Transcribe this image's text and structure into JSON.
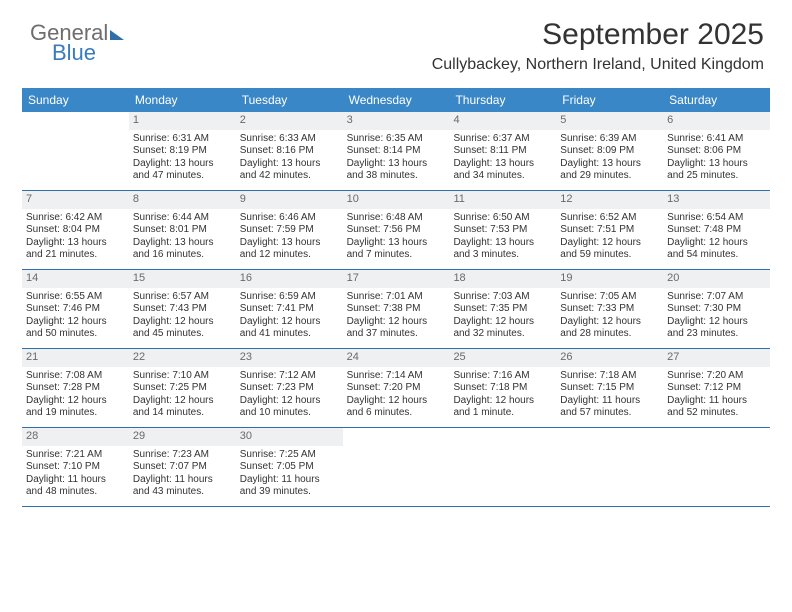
{
  "logo": {
    "part1": "General",
    "part2": "Blue"
  },
  "header": {
    "title": "September 2025",
    "subtitle": "Cullybackey, Northern Ireland, United Kingdom"
  },
  "colors": {
    "header_bg": "#3a87c7",
    "header_text": "#ffffff",
    "rule": "#2f6fa7",
    "daynum_bg": "#eef0f1",
    "text": "#333333",
    "logo_gray": "#6e6e6e",
    "logo_blue": "#3a7bbf"
  },
  "day_names": [
    "Sunday",
    "Monday",
    "Tuesday",
    "Wednesday",
    "Thursday",
    "Friday",
    "Saturday"
  ],
  "label": {
    "sunrise": "Sunrise:",
    "sunset": "Sunset:",
    "daylight": "Daylight:"
  },
  "weeks": [
    [
      null,
      {
        "n": "1",
        "sr": "6:31 AM",
        "ss": "8:19 PM",
        "dl1": "13 hours",
        "dl2": "and 47 minutes."
      },
      {
        "n": "2",
        "sr": "6:33 AM",
        "ss": "8:16 PM",
        "dl1": "13 hours",
        "dl2": "and 42 minutes."
      },
      {
        "n": "3",
        "sr": "6:35 AM",
        "ss": "8:14 PM",
        "dl1": "13 hours",
        "dl2": "and 38 minutes."
      },
      {
        "n": "4",
        "sr": "6:37 AM",
        "ss": "8:11 PM",
        "dl1": "13 hours",
        "dl2": "and 34 minutes."
      },
      {
        "n": "5",
        "sr": "6:39 AM",
        "ss": "8:09 PM",
        "dl1": "13 hours",
        "dl2": "and 29 minutes."
      },
      {
        "n": "6",
        "sr": "6:41 AM",
        "ss": "8:06 PM",
        "dl1": "13 hours",
        "dl2": "and 25 minutes."
      }
    ],
    [
      {
        "n": "7",
        "sr": "6:42 AM",
        "ss": "8:04 PM",
        "dl1": "13 hours",
        "dl2": "and 21 minutes."
      },
      {
        "n": "8",
        "sr": "6:44 AM",
        "ss": "8:01 PM",
        "dl1": "13 hours",
        "dl2": "and 16 minutes."
      },
      {
        "n": "9",
        "sr": "6:46 AM",
        "ss": "7:59 PM",
        "dl1": "13 hours",
        "dl2": "and 12 minutes."
      },
      {
        "n": "10",
        "sr": "6:48 AM",
        "ss": "7:56 PM",
        "dl1": "13 hours",
        "dl2": "and 7 minutes."
      },
      {
        "n": "11",
        "sr": "6:50 AM",
        "ss": "7:53 PM",
        "dl1": "13 hours",
        "dl2": "and 3 minutes."
      },
      {
        "n": "12",
        "sr": "6:52 AM",
        "ss": "7:51 PM",
        "dl1": "12 hours",
        "dl2": "and 59 minutes."
      },
      {
        "n": "13",
        "sr": "6:54 AM",
        "ss": "7:48 PM",
        "dl1": "12 hours",
        "dl2": "and 54 minutes."
      }
    ],
    [
      {
        "n": "14",
        "sr": "6:55 AM",
        "ss": "7:46 PM",
        "dl1": "12 hours",
        "dl2": "and 50 minutes."
      },
      {
        "n": "15",
        "sr": "6:57 AM",
        "ss": "7:43 PM",
        "dl1": "12 hours",
        "dl2": "and 45 minutes."
      },
      {
        "n": "16",
        "sr": "6:59 AM",
        "ss": "7:41 PM",
        "dl1": "12 hours",
        "dl2": "and 41 minutes."
      },
      {
        "n": "17",
        "sr": "7:01 AM",
        "ss": "7:38 PM",
        "dl1": "12 hours",
        "dl2": "and 37 minutes."
      },
      {
        "n": "18",
        "sr": "7:03 AM",
        "ss": "7:35 PM",
        "dl1": "12 hours",
        "dl2": "and 32 minutes."
      },
      {
        "n": "19",
        "sr": "7:05 AM",
        "ss": "7:33 PM",
        "dl1": "12 hours",
        "dl2": "and 28 minutes."
      },
      {
        "n": "20",
        "sr": "7:07 AM",
        "ss": "7:30 PM",
        "dl1": "12 hours",
        "dl2": "and 23 minutes."
      }
    ],
    [
      {
        "n": "21",
        "sr": "7:08 AM",
        "ss": "7:28 PM",
        "dl1": "12 hours",
        "dl2": "and 19 minutes."
      },
      {
        "n": "22",
        "sr": "7:10 AM",
        "ss": "7:25 PM",
        "dl1": "12 hours",
        "dl2": "and 14 minutes."
      },
      {
        "n": "23",
        "sr": "7:12 AM",
        "ss": "7:23 PM",
        "dl1": "12 hours",
        "dl2": "and 10 minutes."
      },
      {
        "n": "24",
        "sr": "7:14 AM",
        "ss": "7:20 PM",
        "dl1": "12 hours",
        "dl2": "and 6 minutes."
      },
      {
        "n": "25",
        "sr": "7:16 AM",
        "ss": "7:18 PM",
        "dl1": "12 hours",
        "dl2": "and 1 minute."
      },
      {
        "n": "26",
        "sr": "7:18 AM",
        "ss": "7:15 PM",
        "dl1": "11 hours",
        "dl2": "and 57 minutes."
      },
      {
        "n": "27",
        "sr": "7:20 AM",
        "ss": "7:12 PM",
        "dl1": "11 hours",
        "dl2": "and 52 minutes."
      }
    ],
    [
      {
        "n": "28",
        "sr": "7:21 AM",
        "ss": "7:10 PM",
        "dl1": "11 hours",
        "dl2": "and 48 minutes."
      },
      {
        "n": "29",
        "sr": "7:23 AM",
        "ss": "7:07 PM",
        "dl1": "11 hours",
        "dl2": "and 43 minutes."
      },
      {
        "n": "30",
        "sr": "7:25 AM",
        "ss": "7:05 PM",
        "dl1": "11 hours",
        "dl2": "and 39 minutes."
      },
      null,
      null,
      null,
      null
    ]
  ]
}
